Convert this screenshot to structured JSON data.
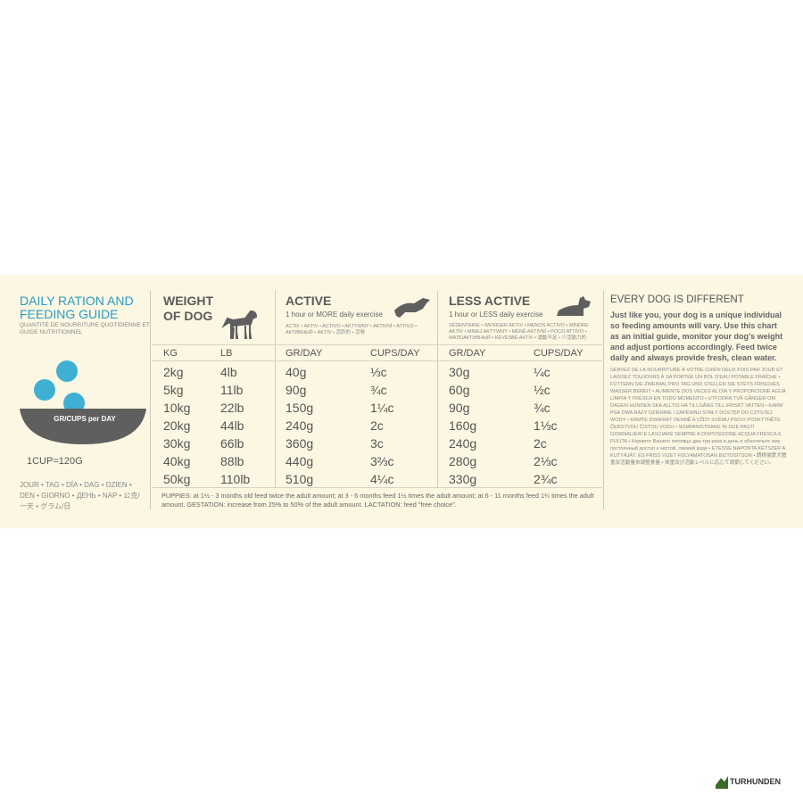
{
  "guide": {
    "title": "DAILY RATION AND FEEDING GUIDE",
    "subtitle": "QUANTITÉ DE NOURRITURE QUOTIDIENNE ET GUIDE NUTRITIONNEL",
    "bowl_label": "GR/CUPS per DAY",
    "cup_note": "1CUP=120G",
    "per_day_translations": "JOUR • TAG • DÍA • DAG • DZIEN • DEN • GIORNO • ДЕНЬ • NAP • 公克/一天 • グラム/日"
  },
  "table": {
    "weight_header": "WEIGHT OF DOG",
    "active_header": "ACTIVE",
    "active_desc": "1 hour or MORE daily exercise",
    "active_translations": "ACTIF • AKTIV • ACTIVO • AKTYWNY • AKTIVNÍ • ATTIVO • АКТИВНЫЙ • AKTÍV • 活跃的 • 活発",
    "less_header": "LESS ACTIVE",
    "less_desc": "1 hour or LESS daily exercise",
    "less_translations": "SÉDENTAIRE • WENIGER AKTIV • MENOS ACTIVO • MINDRE AKTIV • MNIEJ AKTYWNY • MÉNĚ AKTIVNÍ • POCO ATTIVO • МАЛОАКТИВНЫЙ • KEVÉSBÉ AKTÍV • 運動不足 • 少活動力的",
    "columns": [
      "KG",
      "LB",
      "GR/DAY",
      "CUPS/DAY",
      "GR/DAY",
      "CUPS/DAY"
    ],
    "rows": [
      [
        "2kg",
        "4lb",
        "40g",
        "⅓c",
        "30g",
        "¼c"
      ],
      [
        "5kg",
        "11lb",
        "90g",
        "¾c",
        "60g",
        "½c"
      ],
      [
        "10kg",
        "22lb",
        "150g",
        "1¼c",
        "90g",
        "¾c"
      ],
      [
        "20kg",
        "44lb",
        "240g",
        "2c",
        "160g",
        "1⅓c"
      ],
      [
        "30kg",
        "66lb",
        "360g",
        "3c",
        "240g",
        "2c"
      ],
      [
        "40kg",
        "88lb",
        "440g",
        "3⅔c",
        "280g",
        "2⅓c"
      ],
      [
        "50kg",
        "110lb",
        "510g",
        "4¼c",
        "330g",
        "2¾c"
      ]
    ],
    "footnote": "PUPPIES: at 1½ - 3 months old feed twice the adult amount; at 3 - 6 months feed 1½ times the adult amount; at 6 - 11 months feed 1¼ times the adult amount. GESTATION: increase from 25% to 50% of the adult amount. LACTATION: feed \"free choice\"."
  },
  "info": {
    "title": "EVERY DOG IS DIFFERENT",
    "body": "Just like you, your dog is a unique individual so feeding amounts will vary. Use this chart as an initial guide, monitor your dog's weight and adjust portions accordingly. Feed twice daily and always provide fresh, clean water.",
    "translations": "SERVEZ DE LA NOURRITURE À VOTRE CHIEN DEUX FOIS PAR JOUR ET LAISSEZ TOUJOURS À SA PORTÉE UN BOL D'EAU POTABLE FRAÎCHE • FÜTTERN SIE ZWEIMAL PRO TAG UND STELLEN SIE STETS FRISCHES WASSER BEREIT • ALIMENTE DOS VECES AL DÍA Y PROPORCIONE AGUA LIMPIA Y FRESCA EN TODO MOMENTO • UTFODRA TVÅ GÅNGER OM DAGEN HUNDEN SKA ALLTID HA TILLGÅNG TILL FRISKT VATTEN • KARM PSA DWA RAZY DZIENNIE I ZAPEWNIJ STAŁY DOSTĘP DO CZYSTEJ WODY • KRMTE DVAKRÁT DENNĚ A VŽDY SVÉMU PSOVI POSKYTNĚTE ČERSTVOU ČISTOU VODU • SOMMINISTRARE IN DUE PASTI GIORNALIERI E LASCIARE SEMPRE A DISPOSIZIONE ACQUA FRESCA E PULITA • Кормите Вашего питомца два-три раза в день и обеспечьте ему постоянный доступ к чистой, свежей воде • ETESSE NAPONTA KÉTSZER A KUTYÁJÁT. ÉS FRISS VIZET FOLYAMATOSAN BIZTOSÍTSON • 請根據愛犬體重及活動量來調整食量 • 体重及び活動レベルに応じて調節してください。"
  },
  "watermark": "TURHUNDEN"
}
